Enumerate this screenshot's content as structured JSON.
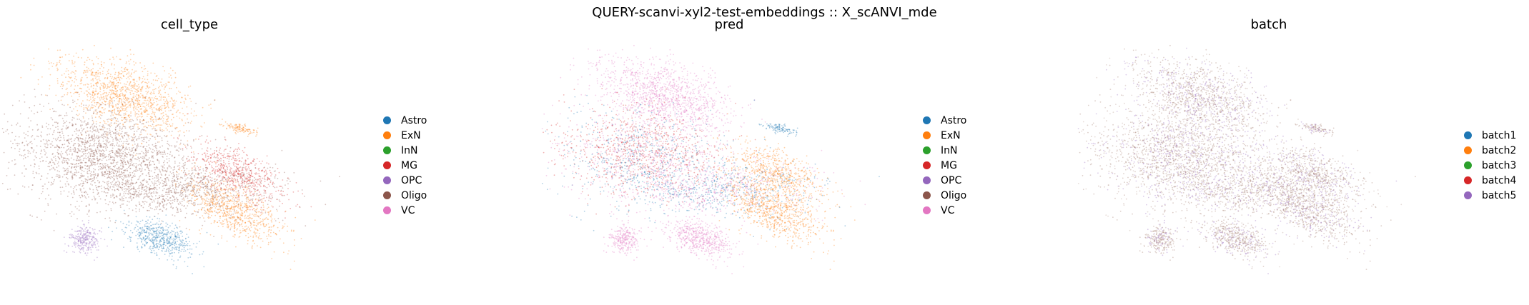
{
  "suptitle": "QUERY-scanvi-xyl2-test-embeddings :: X_scANVI_mde",
  "chart_data": [
    {
      "type": "scatter",
      "title": "cell_type",
      "legend_placement": "right",
      "legend": [
        {
          "label": "Astro",
          "color": "#1f77b4"
        },
        {
          "label": "ExN",
          "color": "#ff7f0e"
        },
        {
          "label": "InN",
          "color": "#2ca02c"
        },
        {
          "label": "MG",
          "color": "#d62728"
        },
        {
          "label": "OPC",
          "color": "#9467bd"
        },
        {
          "label": "Oligo",
          "color": "#8c564b"
        },
        {
          "label": "VC",
          "color": "#e377c2"
        }
      ]
    },
    {
      "type": "scatter",
      "title": "pred",
      "legend_placement": "right",
      "legend": [
        {
          "label": "Astro",
          "color": "#1f77b4"
        },
        {
          "label": "ExN",
          "color": "#ff7f0e"
        },
        {
          "label": "InN",
          "color": "#2ca02c"
        },
        {
          "label": "MG",
          "color": "#d62728"
        },
        {
          "label": "OPC",
          "color": "#9467bd"
        },
        {
          "label": "Oligo",
          "color": "#8c564b"
        },
        {
          "label": "VC",
          "color": "#e377c2"
        }
      ]
    },
    {
      "type": "scatter",
      "title": "batch",
      "legend_placement": "right",
      "legend": [
        {
          "label": "batch1",
          "color": "#1f77b4"
        },
        {
          "label": "batch2",
          "color": "#ff7f0e"
        },
        {
          "label": "batch3",
          "color": "#2ca02c"
        },
        {
          "label": "batch4",
          "color": "#d62728"
        },
        {
          "label": "batch5",
          "color": "#9467bd"
        }
      ]
    }
  ]
}
